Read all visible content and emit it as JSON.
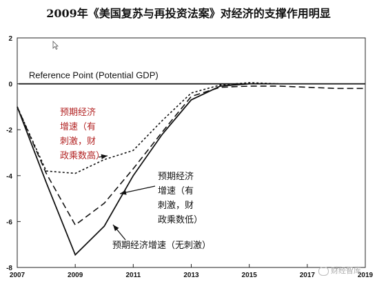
{
  "chart_data": {
    "type": "line",
    "title": "2009年《美国复苏与再投资法案》对经济的支撑作用明显",
    "xlabel": "",
    "ylabel": "",
    "xlim": [
      2007,
      2019
    ],
    "ylim": [
      -8,
      2
    ],
    "x_ticks": [
      "2007",
      "2009",
      "2011",
      "2013",
      "2015",
      "2017",
      "2019"
    ],
    "y_ticks": [
      "2",
      "0",
      "-2",
      "-4",
      "-6",
      "-8"
    ],
    "reference_line": {
      "label": "Reference Point (Potential GDP)",
      "value": 0
    },
    "series": [
      {
        "name": "预期经济增速（有刺激，财政乘数高）",
        "style": "dotted",
        "color": "#111111",
        "label_color": "#b22222",
        "x": [
          2007,
          2008,
          2009,
          2010,
          2011,
          2012,
          2013,
          2014,
          2015,
          2016
        ],
        "values": [
          -1.0,
          -3.8,
          -3.9,
          -3.3,
          -2.9,
          -1.6,
          -0.4,
          -0.05,
          0.05,
          0.0
        ]
      },
      {
        "name": "预期经济增速（有刺激，财政乘数低）",
        "style": "dashed",
        "color": "#111111",
        "label_color": "#111111",
        "x": [
          2007,
          2008,
          2009,
          2010,
          2011,
          2012,
          2013,
          2014,
          2015,
          2016,
          2017,
          2018,
          2019
        ],
        "values": [
          -1.0,
          -3.9,
          -6.15,
          -5.2,
          -3.7,
          -2.1,
          -0.55,
          -0.15,
          -0.1,
          -0.1,
          -0.15,
          -0.2,
          -0.2
        ]
      },
      {
        "name": "预期经济增速（无刺激）",
        "style": "solid",
        "color": "#111111",
        "label_color": "#111111",
        "x": [
          2007,
          2008,
          2009,
          2010,
          2011,
          2012,
          2013,
          2014,
          2015,
          2016
        ],
        "values": [
          -1.0,
          -4.3,
          -7.45,
          -6.2,
          -4.0,
          -2.2,
          -0.7,
          -0.1,
          0.0,
          0.0
        ]
      }
    ],
    "annotations": [
      {
        "series": 0,
        "lines": [
          "预期经济",
          "增速（有",
          "刺激，财",
          "政乘数高）"
        ]
      },
      {
        "series": 1,
        "lines": [
          "预期经济",
          "增速（有",
          "刺激，财",
          "政乘数低）"
        ]
      },
      {
        "series": 2,
        "lines": [
          "预期经济增速（无刺激）"
        ]
      }
    ],
    "grid": false,
    "legend": "none"
  },
  "watermark": {
    "text": "财经智库"
  }
}
